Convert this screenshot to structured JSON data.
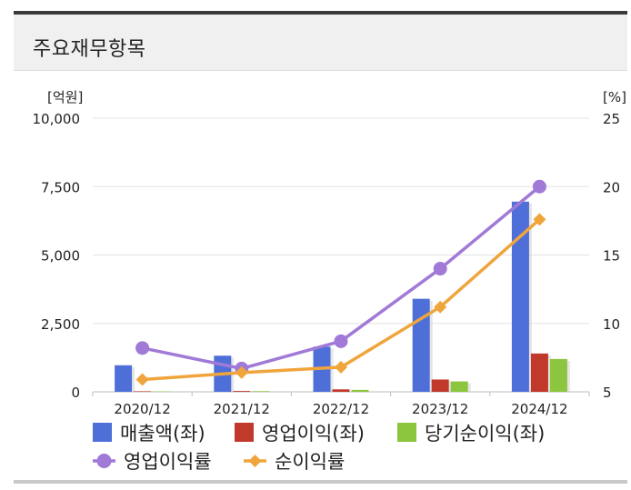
{
  "header": {
    "title": "주요재무항목"
  },
  "chart_data": {
    "type": "bar+line",
    "categories": [
      "2020/12",
      "2021/12",
      "2022/12",
      "2023/12",
      "2024/12"
    ],
    "left_axis": {
      "unit_label": "[억원]",
      "range": [
        0,
        10000
      ],
      "ticks": [
        "10,000",
        "7,500",
        "5,000",
        "2,500",
        "0"
      ],
      "tick_values": [
        10000,
        7500,
        5000,
        2500,
        0
      ]
    },
    "right_axis": {
      "unit_label": "[%]",
      "range": [
        5,
        25
      ],
      "ticks": [
        "25",
        "20",
        "15",
        "10",
        "5"
      ],
      "tick_values": [
        25,
        20,
        15,
        10,
        5
      ]
    },
    "bar_series": [
      {
        "name": "매출액(좌)",
        "color": "#4e6fd8",
        "values": [
          970,
          1320,
          1650,
          3400,
          6950
        ]
      },
      {
        "name": "영업이익(좌)",
        "color": "#c0392b",
        "values": [
          20,
          30,
          90,
          450,
          1400
        ]
      },
      {
        "name": "당기순이익(좌)",
        "color": "#8cc63f",
        "values": [
          15,
          25,
          70,
          380,
          1200
        ]
      }
    ],
    "line_series": [
      {
        "name": "영업이익률",
        "color": "#a07ad6",
        "marker": "circle",
        "values": [
          8.2,
          6.7,
          8.7,
          14.0,
          20.0
        ]
      },
      {
        "name": "순이익률",
        "color": "#f0a53c",
        "marker": "diamond",
        "values": [
          5.9,
          6.4,
          6.8,
          11.2,
          17.6
        ]
      }
    ],
    "legend": {
      "placement": "bottom"
    }
  }
}
